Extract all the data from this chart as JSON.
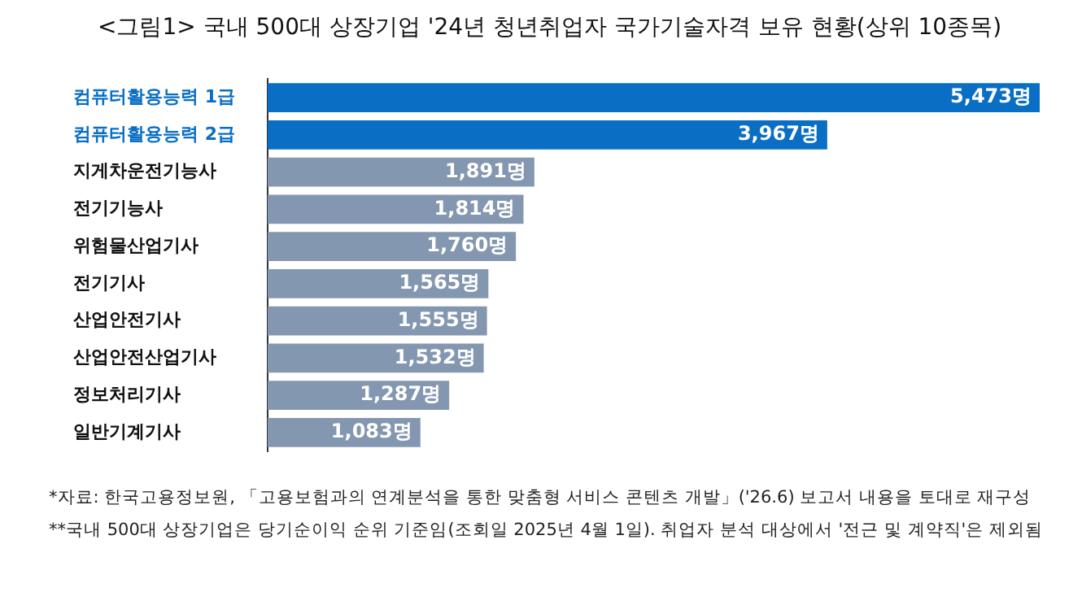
{
  "chart_data": {
    "type": "bar",
    "orientation": "horizontal",
    "title": "<그림1> 국내 500대 상장기업 '24년 청년취업자 국가기술자격 보유 현황(상위 10종목)",
    "categories": [
      "컴퓨터활용능력 1급",
      "컴퓨터활용능력 2급",
      "지게차운전기능사",
      "전기기능사",
      "위험물산업기사",
      "전기기사",
      "산업안전기사",
      "산업안전산업기사",
      "정보처리기사",
      "일반기계기사"
    ],
    "values": [
      5473,
      3967,
      1891,
      1814,
      1760,
      1565,
      1555,
      1532,
      1287,
      1083
    ],
    "value_labels": [
      "5,473명",
      "3,967명",
      "1,891명",
      "1,814명",
      "1,760명",
      "1,565명",
      "1,555명",
      "1,532명",
      "1,287명",
      "1,083명"
    ],
    "colors": [
      "#0a6fc4",
      "#0a6fc4",
      "#8497b0",
      "#8497b0",
      "#8497b0",
      "#8497b0",
      "#8497b0",
      "#8497b0",
      "#8497b0",
      "#8497b0"
    ],
    "legend": false,
    "annotations": [
      "*자료: 한국고용정보원, 「고용보험과의 연계분석을 통한 맞춤형 서비스 콘텐츠 개발」('26.6) 보고서 내용을 토대로 재구성",
      "**국내 500대 상장기업은 당기순이익 순위 기준임(조회일 2025년 4월 1일). 취업자 분석 대상에서 '전근 및 계약직'은 제외됨"
    ]
  }
}
